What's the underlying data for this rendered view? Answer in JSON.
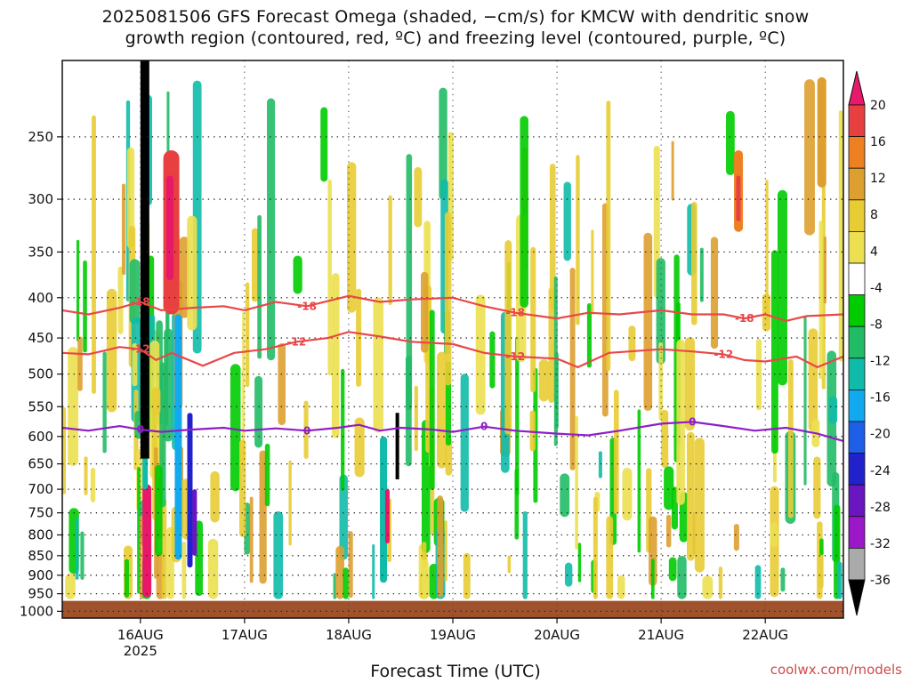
{
  "title_line1": "2025081506 GFS Forecast Omega (shaded, −cm/s) for KMCW with dendritic snow",
  "title_line2": "growth region (contoured, red, ºC) and freezing level (contoured, purple, ºC)",
  "credit": "coolwx.com/models",
  "chart_data": {
    "type": "heatmap",
    "title": "2025081506 GFS Forecast Omega (shaded, −cm/s) for KMCW with dendritic snow growth region (contoured, red, ºC) and freezing level (contoured, purple, ºC)",
    "xlabel": "Forecast Time (UTC)",
    "ylabel": "",
    "x_ticks": [
      {
        "label": "16AUG",
        "sub": "2025",
        "day": 16
      },
      {
        "label": "17AUG",
        "sub": "",
        "day": 17
      },
      {
        "label": "18AUG",
        "sub": "",
        "day": 18
      },
      {
        "label": "19AUG",
        "sub": "",
        "day": 19
      },
      {
        "label": "20AUG",
        "sub": "",
        "day": 20
      },
      {
        "label": "21AUG",
        "sub": "",
        "day": 21
      },
      {
        "label": "22AUG",
        "sub": "",
        "day": 22
      }
    ],
    "xlim": [
      15.25,
      22.75
    ],
    "y_ticks": [
      250,
      300,
      350,
      400,
      450,
      500,
      550,
      600,
      650,
      700,
      750,
      800,
      850,
      900,
      950,
      1000
    ],
    "ylim": [
      200,
      1020
    ],
    "y_scale": "log-pressure",
    "y_inverted": true,
    "grid": true,
    "colorbar": {
      "levels": [
        20,
        16,
        12,
        8,
        4,
        -4,
        -8,
        -12,
        -16,
        -20,
        -24,
        -28,
        -32,
        -36
      ],
      "colors": [
        "#e8186a",
        "#e84040",
        "#ee8022",
        "#dda030",
        "#e8cc33",
        "#ece050",
        "#ffffff",
        "#00cc00",
        "#22bb66",
        "#11bbaa",
        "#11aaee",
        "#1e5fe8",
        "#2222cc",
        "#6a16c0",
        "#9a18c8",
        "#aaaaaa",
        "#000000"
      ]
    },
    "ground_level_hpa": 970,
    "ground_color": "#a0522d",
    "contours": [
      {
        "name": "-18",
        "color": "#e84848",
        "label": "-18",
        "x": [
          15.25,
          15.5,
          15.8,
          16.0,
          16.2,
          16.5,
          16.8,
          17.0,
          17.3,
          17.6,
          18.0,
          18.3,
          18.6,
          19.0,
          19.3,
          19.6,
          20.0,
          20.3,
          20.6,
          21.0,
          21.3,
          21.6,
          21.8,
          22.0,
          22.2,
          22.4,
          22.75
        ],
        "y": [
          415,
          420,
          412,
          405,
          415,
          412,
          410,
          415,
          405,
          410,
          398,
          405,
          402,
          400,
          410,
          418,
          425,
          418,
          420,
          415,
          420,
          420,
          425,
          420,
          428,
          422,
          420
        ]
      },
      {
        "name": "-12",
        "color": "#e84848",
        "label": "-12",
        "x": [
          15.25,
          15.5,
          15.8,
          16.0,
          16.15,
          16.3,
          16.6,
          16.9,
          17.2,
          17.5,
          17.8,
          18.0,
          18.3,
          18.6,
          19.0,
          19.3,
          19.6,
          20.0,
          20.2,
          20.5,
          21.0,
          21.3,
          21.6,
          21.8,
          22.0,
          22.3,
          22.5,
          22.75
        ],
        "y": [
          470,
          472,
          462,
          465,
          480,
          470,
          488,
          470,
          465,
          455,
          450,
          442,
          448,
          455,
          458,
          470,
          475,
          478,
          490,
          470,
          465,
          468,
          472,
          480,
          482,
          475,
          490,
          475
        ]
      },
      {
        "name": "0",
        "color": "#8e1ec8",
        "label": "0",
        "x": [
          15.25,
          15.5,
          15.8,
          16.0,
          16.2,
          16.5,
          16.8,
          17.0,
          17.3,
          17.6,
          17.9,
          18.1,
          18.3,
          18.5,
          18.8,
          19.0,
          19.3,
          19.6,
          20.0,
          20.3,
          20.6,
          21.0,
          21.3,
          21.6,
          21.9,
          22.2,
          22.5,
          22.75
        ],
        "y": [
          585,
          590,
          582,
          588,
          592,
          588,
          585,
          590,
          586,
          590,
          585,
          580,
          590,
          585,
          588,
          592,
          583,
          590,
          595,
          598,
          590,
          578,
          575,
          582,
          590,
          585,
          595,
          608
        ]
      }
    ]
  }
}
